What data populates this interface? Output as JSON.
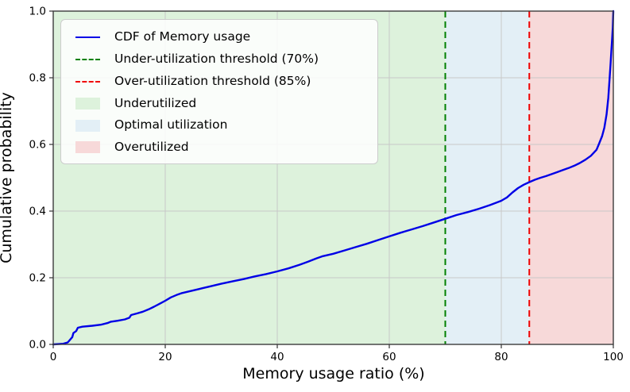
{
  "figure": {
    "xlabel": "Memory usage ratio (%)",
    "ylabel": "Cumulative probability"
  },
  "legend": {
    "items": [
      {
        "label": "CDF of Memory usage",
        "handle": "line",
        "dash": "solid",
        "color": "#0000e6"
      },
      {
        "label": "Under-utilization threshold (70%)",
        "handle": "line",
        "dash": "dashed",
        "color": "#008000"
      },
      {
        "label": "Over-utilization threshold (85%)",
        "handle": "line",
        "dash": "dashed",
        "color": "#f00000"
      },
      {
        "label": "Underutilized",
        "handle": "patch",
        "color": "#ddf2dc"
      },
      {
        "label": "Optimal utilization",
        "handle": "patch",
        "color": "#e3eff6"
      },
      {
        "label": "Overutilized",
        "handle": "patch",
        "color": "#f7d9d9"
      }
    ]
  },
  "chart_data": {
    "type": "line",
    "title": "",
    "xlabel": "Memory usage ratio (%)",
    "ylabel": "Cumulative probability",
    "xlim": [
      0,
      100
    ],
    "ylim": [
      0.0,
      1.0
    ],
    "xticks": [
      0,
      20,
      40,
      60,
      80,
      100
    ],
    "xtick_labels": [
      "0",
      "20",
      "40",
      "60",
      "80",
      "100"
    ],
    "yticks": [
      0.0,
      0.2,
      0.4,
      0.6,
      0.8,
      1.0
    ],
    "ytick_labels": [
      "0.0",
      "0.2",
      "0.4",
      "0.6",
      "0.8",
      "1.0"
    ],
    "grid": true,
    "legend_position": "upper left",
    "regions": [
      {
        "name": "underutilized",
        "from": 0,
        "to": 70,
        "color": "#ddf2dc"
      },
      {
        "name": "optimal-utilization",
        "from": 70,
        "to": 85,
        "color": "#e3eff6"
      },
      {
        "name": "overutilized",
        "from": 85,
        "to": 100,
        "color": "#f7d9d9"
      }
    ],
    "thresholds": [
      {
        "name": "under-utilization-threshold",
        "x": 70,
        "color": "#008000",
        "style": "dashed"
      },
      {
        "name": "over-utilization-threshold",
        "x": 85,
        "color": "#f00000",
        "style": "dashed"
      }
    ],
    "series": [
      {
        "name": "CDF of Memory usage",
        "color": "#0000e6",
        "points": [
          [
            0,
            0.0
          ],
          [
            1.8,
            0.002
          ],
          [
            2.6,
            0.006
          ],
          [
            3.0,
            0.014
          ],
          [
            3.4,
            0.022
          ],
          [
            3.6,
            0.034
          ],
          [
            4.1,
            0.04
          ],
          [
            4.4,
            0.05
          ],
          [
            5.2,
            0.053
          ],
          [
            7.0,
            0.056
          ],
          [
            8.5,
            0.059
          ],
          [
            9.7,
            0.064
          ],
          [
            10.3,
            0.068
          ],
          [
            11.5,
            0.071
          ],
          [
            12.8,
            0.075
          ],
          [
            13.6,
            0.08
          ],
          [
            13.9,
            0.088
          ],
          [
            15,
            0.093
          ],
          [
            16,
            0.098
          ],
          [
            17,
            0.105
          ],
          [
            18,
            0.113
          ],
          [
            19,
            0.122
          ],
          [
            20,
            0.131
          ],
          [
            21,
            0.141
          ],
          [
            22,
            0.148
          ],
          [
            23,
            0.154
          ],
          [
            24.5,
            0.16
          ],
          [
            26,
            0.166
          ],
          [
            28,
            0.174
          ],
          [
            30,
            0.182
          ],
          [
            32,
            0.189
          ],
          [
            34,
            0.196
          ],
          [
            36,
            0.204
          ],
          [
            38,
            0.211
          ],
          [
            40,
            0.219
          ],
          [
            42,
            0.228
          ],
          [
            44,
            0.239
          ],
          [
            45.5,
            0.248
          ],
          [
            47,
            0.258
          ],
          [
            48,
            0.264
          ],
          [
            50,
            0.272
          ],
          [
            52,
            0.282
          ],
          [
            54,
            0.292
          ],
          [
            56,
            0.302
          ],
          [
            58,
            0.313
          ],
          [
            60,
            0.324
          ],
          [
            62,
            0.335
          ],
          [
            64,
            0.345
          ],
          [
            66,
            0.355
          ],
          [
            68,
            0.366
          ],
          [
            70,
            0.377
          ],
          [
            72,
            0.388
          ],
          [
            74,
            0.397
          ],
          [
            76,
            0.407
          ],
          [
            78,
            0.418
          ],
          [
            80,
            0.431
          ],
          [
            81,
            0.441
          ],
          [
            82,
            0.456
          ],
          [
            83,
            0.469
          ],
          [
            84,
            0.479
          ],
          [
            85,
            0.487
          ],
          [
            86,
            0.494
          ],
          [
            87,
            0.5
          ],
          [
            88,
            0.505
          ],
          [
            89,
            0.511
          ],
          [
            90,
            0.517
          ],
          [
            91,
            0.523
          ],
          [
            92,
            0.529
          ],
          [
            93,
            0.536
          ],
          [
            94,
            0.544
          ],
          [
            95,
            0.554
          ],
          [
            96,
            0.566
          ],
          [
            97,
            0.584
          ],
          [
            97.4,
            0.6
          ],
          [
            98,
            0.625
          ],
          [
            98.4,
            0.65
          ],
          [
            98.8,
            0.69
          ],
          [
            99.1,
            0.74
          ],
          [
            99.3,
            0.79
          ],
          [
            99.5,
            0.84
          ],
          [
            99.65,
            0.88
          ],
          [
            99.8,
            0.92
          ],
          [
            99.9,
            0.95
          ],
          [
            100,
            1.0
          ]
        ]
      }
    ],
    "style": {
      "grid_color": "#c8c8c8",
      "spine_color": "#3c3c3c",
      "tick_color": "#333333",
      "cdf_line_width": 2.4,
      "threshold_line_width": 2.0
    }
  },
  "layout_note": ""
}
